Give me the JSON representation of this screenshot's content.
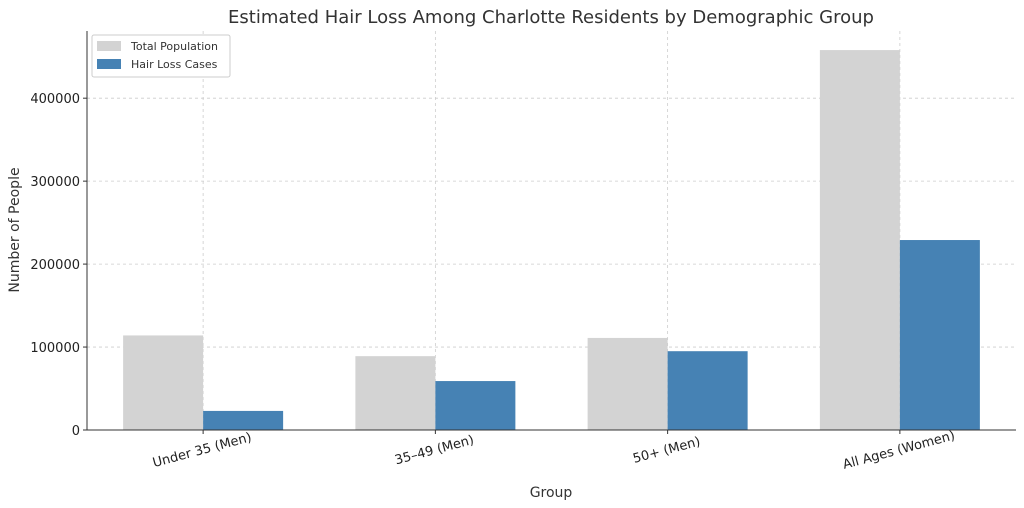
{
  "chart_data": {
    "type": "bar",
    "title": "Estimated Hair Loss Among Charlotte Residents by Demographic Group",
    "xlabel": "Group",
    "ylabel": "Number of People",
    "categories": [
      "Under 35 (Men)",
      "35–49 (Men)",
      "50+ (Men)",
      "All Ages (Women)"
    ],
    "series": [
      {
        "name": "Total Population",
        "values": [
          114000,
          89000,
          111000,
          458000
        ],
        "color": "#d3d3d3"
      },
      {
        "name": "Hair Loss Cases",
        "values": [
          23000,
          59000,
          95000,
          229000
        ],
        "color": "#4682b4"
      }
    ],
    "ylim": [
      0,
      481000
    ],
    "yticks": [
      0,
      100000,
      200000,
      300000,
      400000
    ],
    "ytick_labels": [
      "0",
      "100000",
      "200000",
      "300000",
      "400000"
    ],
    "grid": true,
    "legend_position": "top-left",
    "xtick_rotation": "-15deg"
  }
}
